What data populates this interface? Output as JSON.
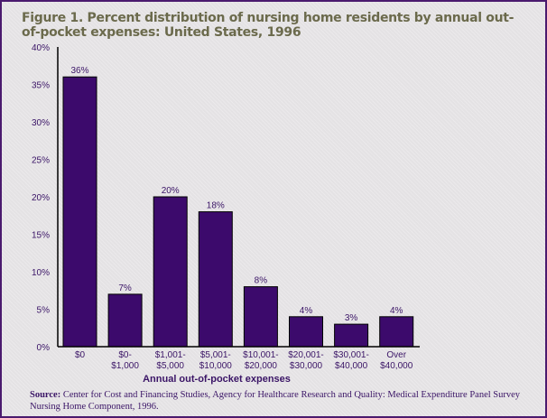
{
  "chart_data": {
    "type": "bar",
    "title": "Figure 1. Percent distribution of nursing home residents by annual out-of-pocket expenses: United States, 1996",
    "xlabel": "Annual out-of-pocket expenses",
    "ylabel": "",
    "categories": [
      [
        "$0"
      ],
      [
        "$0-",
        "$1,000"
      ],
      [
        "$1,001-",
        "$5,000"
      ],
      [
        "$5,001-",
        "$10,000"
      ],
      [
        "$10,001-",
        "$20,000"
      ],
      [
        "$20,001-",
        "$30,000"
      ],
      [
        "$30,001-",
        "$40,000"
      ],
      [
        "Over",
        "$40,000"
      ]
    ],
    "values": [
      36,
      7,
      20,
      18,
      8,
      4,
      3,
      4
    ],
    "data_labels": [
      "36%",
      "7%",
      "20%",
      "18%",
      "8%",
      "4%",
      "3%",
      "4%"
    ],
    "yticks": [
      "0%",
      "5%",
      "10%",
      "15%",
      "20%",
      "25%",
      "30%",
      "35%",
      "40%"
    ],
    "ylim": [
      0,
      40
    ],
    "grid": false,
    "legend": "none",
    "colors": {
      "bar": "#3c0a6c",
      "text": "#3a1466",
      "title": "#6b6a4c"
    }
  },
  "source": {
    "label": "Source:",
    "text": "Center for Cost and Financing Studies, Agency for Healthcare Research and Quality: Medical Expenditure Panel Survey Nursing Home Component, 1996."
  }
}
